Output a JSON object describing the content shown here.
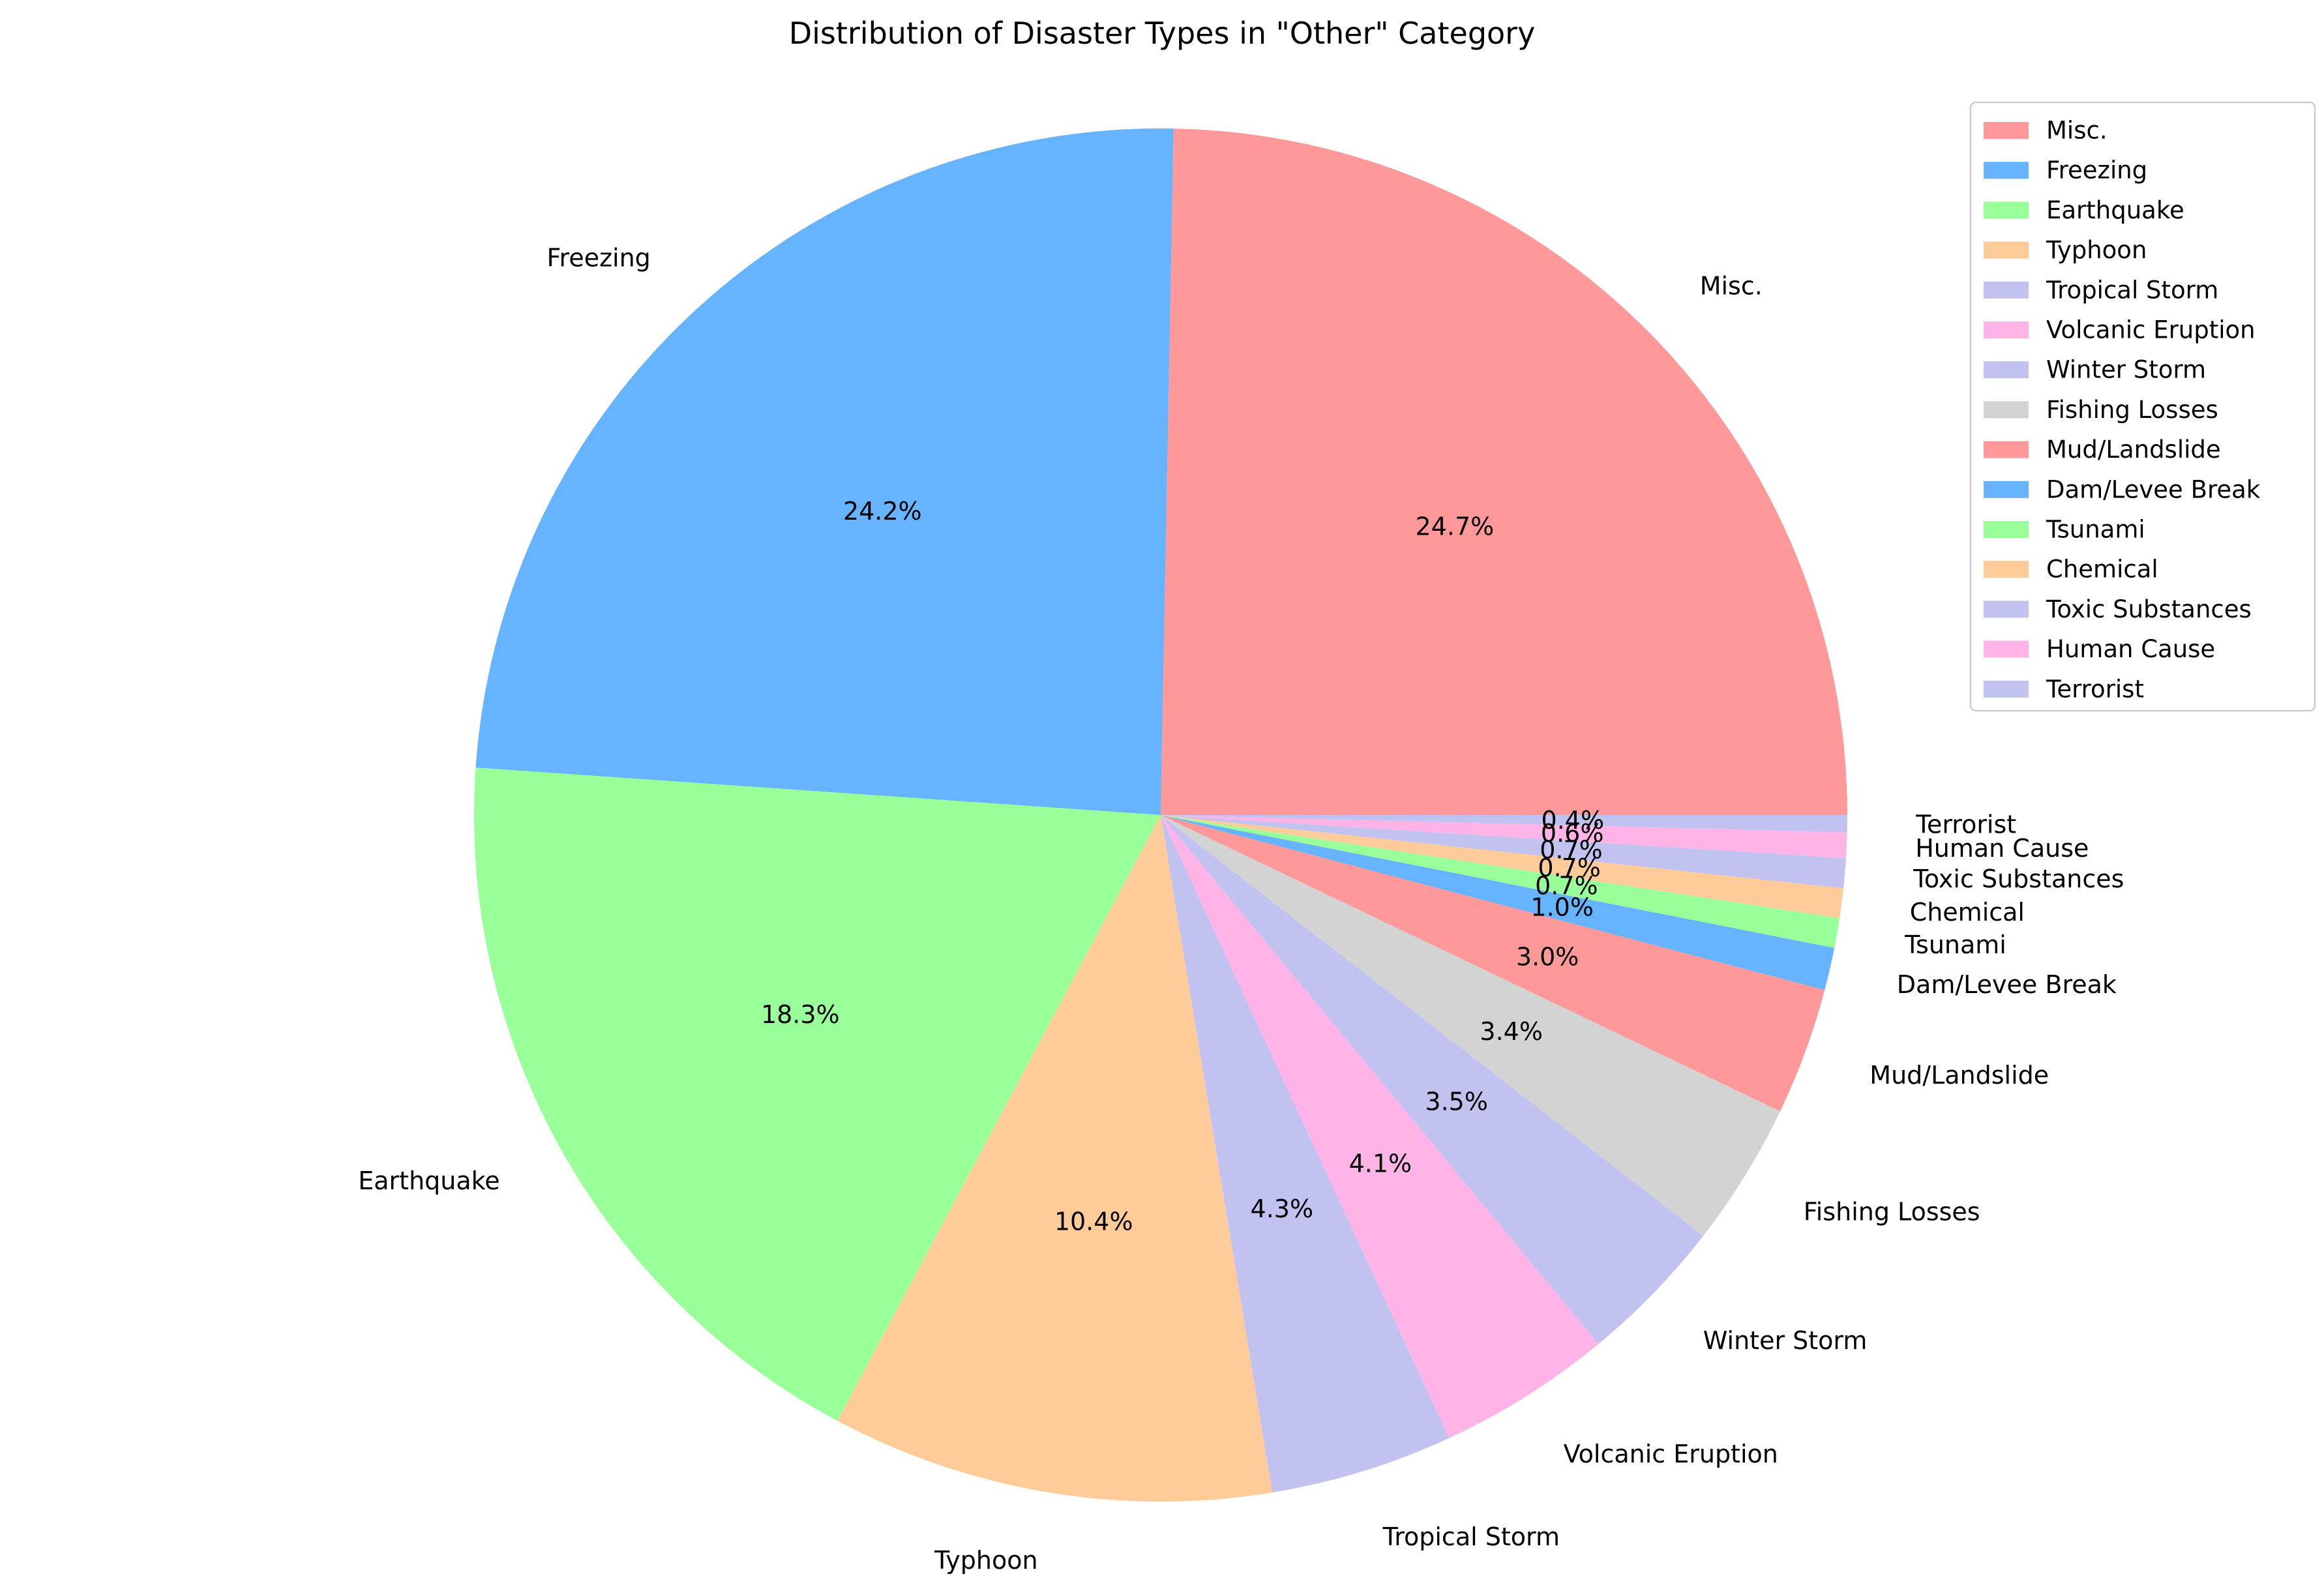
{
  "chart_data": {
    "type": "pie",
    "title": "Distribution of Disaster Types in \"Other\" Category",
    "start_angle_deg": 0,
    "direction": "counterclockwise",
    "legend_placement": "top-right",
    "slices": [
      {
        "label": "Misc.",
        "value": 24.7,
        "pct_label": "24.7%",
        "color": "#ff9999"
      },
      {
        "label": "Freezing",
        "value": 24.2,
        "pct_label": "24.2%",
        "color": "#66b3ff"
      },
      {
        "label": "Earthquake",
        "value": 18.3,
        "pct_label": "18.3%",
        "color": "#99ff99"
      },
      {
        "label": "Typhoon",
        "value": 10.4,
        "pct_label": "10.4%",
        "color": "#ffcc99"
      },
      {
        "label": "Tropical Storm",
        "value": 4.3,
        "pct_label": "4.3%",
        "color": "#c2c2f0"
      },
      {
        "label": "Volcanic Eruption",
        "value": 4.1,
        "pct_label": "4.1%",
        "color": "#ffb3e6"
      },
      {
        "label": "Winter Storm",
        "value": 3.5,
        "pct_label": "3.5%",
        "color": "#c2c2f0"
      },
      {
        "label": "Fishing Losses",
        "value": 3.4,
        "pct_label": "3.4%",
        "color": "#d3d3d3"
      },
      {
        "label": "Mud/Landslide",
        "value": 3.0,
        "pct_label": "3.0%",
        "color": "#ff9999"
      },
      {
        "label": "Dam/Levee Break",
        "value": 1.0,
        "pct_label": "1.0%",
        "color": "#66b3ff"
      },
      {
        "label": "Tsunami",
        "value": 0.7,
        "pct_label": "0.7%",
        "color": "#99ff99"
      },
      {
        "label": "Chemical",
        "value": 0.7,
        "pct_label": "0.7%",
        "color": "#ffcc99"
      },
      {
        "label": "Toxic Substances",
        "value": 0.7,
        "pct_label": "0.7%",
        "color": "#c2c2f0"
      },
      {
        "label": "Human Cause",
        "value": 0.6,
        "pct_label": "0.6%",
        "color": "#ffb3e6"
      },
      {
        "label": "Terrorist",
        "value": 0.4,
        "pct_label": "0.4%",
        "color": "#c2c2f0"
      }
    ]
  }
}
